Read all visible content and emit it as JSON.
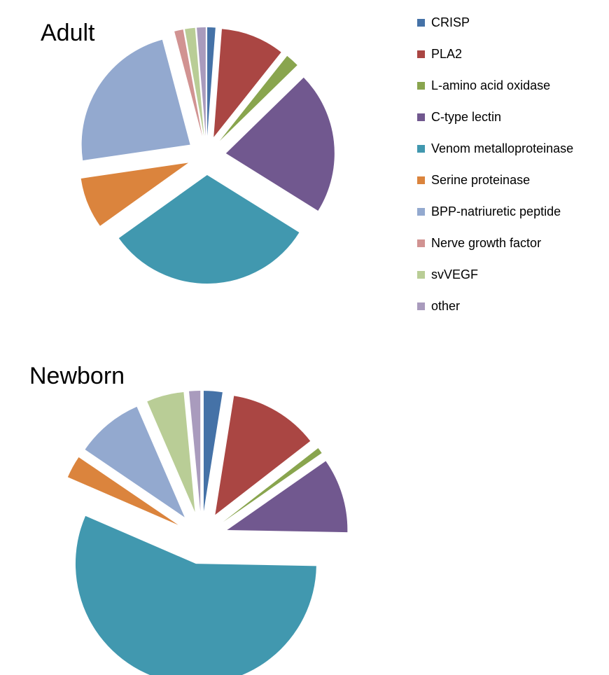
{
  "chart_data": [
    {
      "type": "pie",
      "title": "Adult",
      "exploded": true,
      "categories": [
        "CRISP",
        "PLA2",
        "L-amino acid oxidase",
        "C-type lectin",
        "Venom metalloproteinase",
        "Serine proteinase",
        "BPP-natriuretic peptide",
        "Nerve growth factor",
        "svVEGF",
        "other"
      ],
      "values": [
        1.2,
        9.4,
        2.0,
        21.0,
        31.0,
        7.5,
        23.0,
        1.3,
        1.5,
        1.3
      ]
    },
    {
      "type": "pie",
      "title": "Newborn",
      "exploded": true,
      "categories": [
        "CRISP",
        "PLA2",
        "L-amino acid oxidase",
        "C-type lectin",
        "Venom metalloproteinase",
        "Serine proteinase",
        "BPP-natriuretic peptide",
        "Nerve growth factor",
        "svVEGF",
        "other"
      ],
      "values": [
        2.5,
        12.0,
        0.8,
        10.0,
        56.2,
        3.0,
        9.0,
        0,
        5.0,
        1.5
      ]
    }
  ],
  "legend": {
    "placement": "right",
    "items": [
      {
        "label": "CRISP",
        "color": "#4572A7"
      },
      {
        "label": "PLA2",
        "color": "#AA4643"
      },
      {
        "label": "L-amino acid oxidase",
        "color": "#89A54E"
      },
      {
        "label": "C-type lectin",
        "color": "#71588F"
      },
      {
        "label": "Venom metalloproteinase",
        "color": "#4198AF"
      },
      {
        "label": "Serine proteinase",
        "color": "#DB843D"
      },
      {
        "label": "BPP-natriuretic peptide",
        "color": "#93A9CF"
      },
      {
        "label": "Nerve growth factor",
        "color": "#D19392"
      },
      {
        "label": "svVEGF",
        "color": "#B9CD96"
      },
      {
        "label": "other",
        "color": "#A99BBD"
      }
    ]
  }
}
